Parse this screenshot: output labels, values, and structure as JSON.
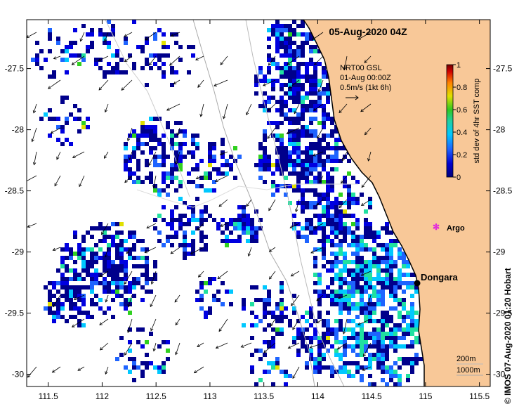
{
  "title": "05-Aug-2020 04Z",
  "wind_note": {
    "line1": "NRT00 GSL",
    "line2": "01-Aug 00:00Z",
    "line3": "0.5m/s (1kt 6h)"
  },
  "colorbar": {
    "label": "std dev of 4hr SST comp",
    "ticks": [
      "0",
      "0.2",
      "0.4",
      "0.6",
      "0.8",
      "1"
    ],
    "min": 0,
    "max": 1,
    "colors": [
      "#00008b",
      "#0000e0",
      "#1e64ff",
      "#00c8ff",
      "#20e0a0",
      "#30d020",
      "#e0e000",
      "#ff8000",
      "#e00000",
      "#800000"
    ]
  },
  "axes": {
    "lon_ticks": [
      "111.5",
      "112",
      "112.5",
      "113",
      "113.5",
      "114",
      "114.5",
      "115",
      "115.5"
    ],
    "lat_ticks": [
      "-27.5",
      "-28",
      "-28.5",
      "-29",
      "-29.5",
      "-30"
    ],
    "lon_range": [
      111.3,
      115.6
    ],
    "lat_range": [
      -30.1,
      -27.1
    ]
  },
  "places": [
    {
      "name": "Dongara",
      "lon": 114.93,
      "lat": -29.25,
      "marker": "black-dot"
    },
    {
      "name": "Argo",
      "lon": 115.1,
      "lat": -28.82,
      "marker": "magenta-star"
    }
  ],
  "contours": {
    "label_200": "200m",
    "label_1000": "1000m"
  },
  "credit": "© IMOS 07-Aug-2020 01:20 Hobart",
  "land_color": "#f8c898",
  "coast_color": "#000000"
}
